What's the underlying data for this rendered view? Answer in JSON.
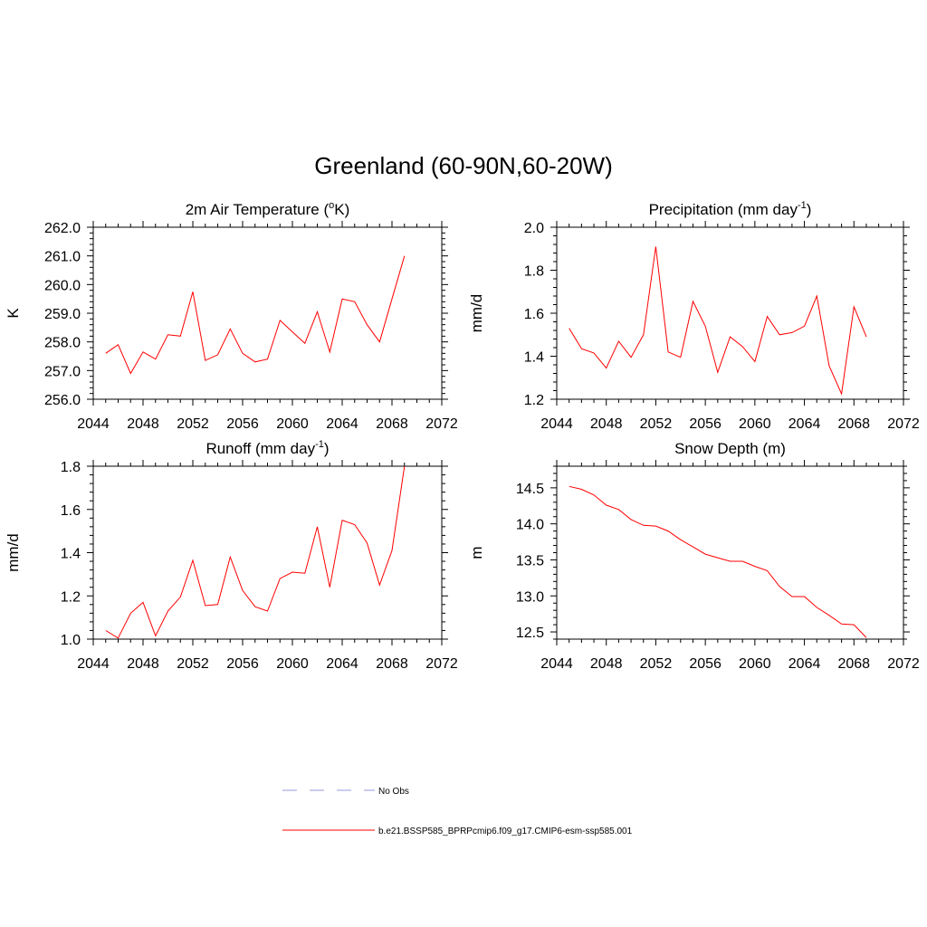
{
  "figure": {
    "title": "Greenland (60-90N,60-20W)"
  },
  "legend": [
    {
      "label": "No Obs",
      "color": "#9999dd",
      "style": "dashed"
    },
    {
      "label": "b.e21.BSSP585_BPRPcmip6.f09_g17.CMIP6-esm-ssp585.001",
      "color": "#ff0000",
      "style": "solid"
    }
  ],
  "chart_data": [
    {
      "type": "line",
      "title": "2m Air Temperature (oK)",
      "title_parts": [
        "2m Air Temperature (",
        "o",
        "K)"
      ],
      "xlabel": "",
      "ylabel": "K",
      "xlim": [
        2044,
        2072
      ],
      "ylim": [
        256.0,
        262.0
      ],
      "xticks": [
        2044,
        2048,
        2052,
        2056,
        2060,
        2064,
        2068,
        2072
      ],
      "yticks": [
        "256.0",
        "257.0",
        "258.0",
        "259.0",
        "260.0",
        "261.0",
        "262.0"
      ],
      "grid": false,
      "series": [
        {
          "color": "#ff0000",
          "x": [
            2045,
            2046,
            2047,
            2048,
            2049,
            2050,
            2051,
            2052,
            2053,
            2054,
            2055,
            2056,
            2057,
            2058,
            2059,
            2060,
            2061,
            2062,
            2063,
            2064,
            2065,
            2066,
            2067,
            2068,
            2069
          ],
          "y": [
            257.6,
            257.9,
            256.9,
            257.65,
            257.4,
            258.25,
            258.2,
            259.75,
            257.35,
            257.55,
            258.45,
            257.6,
            257.3,
            257.4,
            258.75,
            258.35,
            257.95,
            259.05,
            257.65,
            259.5,
            259.4,
            258.6,
            258.0,
            259.5,
            261.0
          ]
        }
      ]
    },
    {
      "type": "line",
      "title": "Precipitation (mm day-1)",
      "title_parts": [
        "Precipitation (mm day",
        "-1",
        ")"
      ],
      "xlabel": "",
      "ylabel": "mm/d",
      "xlim": [
        2044,
        2072
      ],
      "ylim": [
        1.2,
        2.0
      ],
      "xticks": [
        2044,
        2048,
        2052,
        2056,
        2060,
        2064,
        2068,
        2072
      ],
      "yticks": [
        "1.2",
        "1.4",
        "1.6",
        "1.8",
        "2.0"
      ],
      "grid": false,
      "series": [
        {
          "color": "#ff0000",
          "x": [
            2045,
            2046,
            2047,
            2048,
            2049,
            2050,
            2051,
            2052,
            2053,
            2054,
            2055,
            2056,
            2057,
            2058,
            2059,
            2060,
            2061,
            2062,
            2063,
            2064,
            2065,
            2066,
            2067,
            2068,
            2069
          ],
          "y": [
            1.53,
            1.435,
            1.415,
            1.345,
            1.47,
            1.395,
            1.5,
            1.91,
            1.42,
            1.395,
            1.655,
            1.54,
            1.325,
            1.49,
            1.445,
            1.375,
            1.585,
            1.5,
            1.51,
            1.54,
            1.68,
            1.355,
            1.225,
            1.63,
            1.49
          ]
        }
      ]
    },
    {
      "type": "line",
      "title": "Runoff (mm day-1)",
      "title_parts": [
        "Runoff (mm day",
        "-1",
        ")"
      ],
      "xlabel": "",
      "ylabel": "mm/d",
      "xlim": [
        2044,
        2072
      ],
      "ylim": [
        1.0,
        1.8
      ],
      "xticks": [
        2044,
        2048,
        2052,
        2056,
        2060,
        2064,
        2068,
        2072
      ],
      "yticks": [
        "1.0",
        "1.2",
        "1.4",
        "1.6",
        "1.8"
      ],
      "grid": false,
      "series": [
        {
          "color": "#ff0000",
          "x": [
            2045,
            2046,
            2047,
            2048,
            2049,
            2050,
            2051,
            2052,
            2053,
            2054,
            2055,
            2056,
            2057,
            2058,
            2059,
            2060,
            2061,
            2062,
            2063,
            2064,
            2065,
            2066,
            2067,
            2068,
            2069
          ],
          "y": [
            1.04,
            1.005,
            1.12,
            1.17,
            1.015,
            1.13,
            1.195,
            1.365,
            1.155,
            1.16,
            1.38,
            1.225,
            1.15,
            1.13,
            1.28,
            1.31,
            1.305,
            1.52,
            1.24,
            1.55,
            1.53,
            1.445,
            1.25,
            1.41,
            1.8
          ]
        }
      ]
    },
    {
      "type": "line",
      "title": "Snow Depth (m)",
      "title_parts": [
        "Snow Depth (m)",
        "",
        ""
      ],
      "xlabel": "",
      "ylabel": "m",
      "xlim": [
        2044,
        2072
      ],
      "ylim": [
        12.4,
        14.8
      ],
      "xticks": [
        2044,
        2048,
        2052,
        2056,
        2060,
        2064,
        2068,
        2072
      ],
      "yticks": [
        "12.5",
        "13.0",
        "13.5",
        "14.0",
        "14.5"
      ],
      "ytick_values": [
        12.5,
        13.0,
        13.5,
        14.0,
        14.5
      ],
      "grid": false,
      "series": [
        {
          "color": "#ff0000",
          "x": [
            2045,
            2046,
            2047,
            2048,
            2049,
            2050,
            2051,
            2052,
            2053,
            2054,
            2055,
            2056,
            2057,
            2058,
            2059,
            2060,
            2061,
            2062,
            2063,
            2064,
            2065,
            2066,
            2067,
            2068,
            2069
          ],
          "y": [
            14.52,
            14.48,
            14.4,
            14.26,
            14.2,
            14.06,
            13.98,
            13.97,
            13.9,
            13.78,
            13.68,
            13.58,
            13.53,
            13.48,
            13.48,
            13.41,
            13.35,
            13.13,
            12.99,
            12.99,
            12.84,
            12.73,
            12.61,
            12.6,
            12.42
          ]
        }
      ]
    }
  ]
}
